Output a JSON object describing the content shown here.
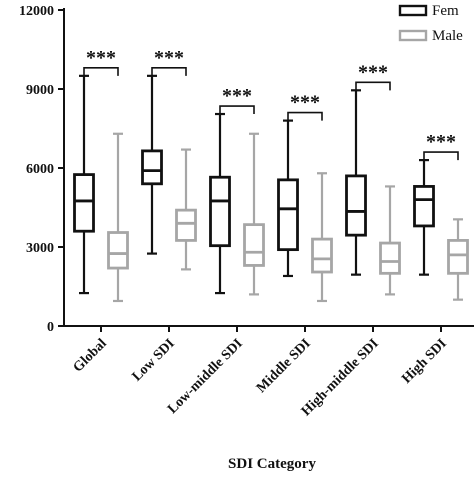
{
  "chart_data": {
    "type": "boxplot",
    "title": "",
    "xlabel": "SDI Category",
    "ylabel": "",
    "ylim": [
      0,
      12000
    ],
    "yticks": [
      0,
      3000,
      6000,
      9000,
      12000
    ],
    "categories": [
      "Global",
      "Low SDI",
      "Low-middle SDI",
      "Middle SDI",
      "High-middle SDI",
      "High SDI"
    ],
    "legend_position": "top-right",
    "series": [
      {
        "name": "Fem",
        "color": "#111111",
        "boxes": [
          {
            "min": 1250,
            "q1": 3600,
            "median": 4750,
            "q3": 5750,
            "max": 9500
          },
          {
            "min": 2750,
            "q1": 5400,
            "median": 5900,
            "q3": 6650,
            "max": 9500
          },
          {
            "min": 1250,
            "q1": 3050,
            "median": 4750,
            "q3": 5650,
            "max": 8050
          },
          {
            "min": 1900,
            "q1": 2900,
            "median": 4450,
            "q3": 5550,
            "max": 7800
          },
          {
            "min": 1950,
            "q1": 3450,
            "median": 4350,
            "q3": 5700,
            "max": 8950
          },
          {
            "min": 1950,
            "q1": 3800,
            "median": 4800,
            "q3": 5300,
            "max": 6300
          }
        ]
      },
      {
        "name": "Male",
        "color": "#a6a6a6",
        "boxes": [
          {
            "min": 950,
            "q1": 2200,
            "median": 2750,
            "q3": 3550,
            "max": 7300
          },
          {
            "min": 2150,
            "q1": 3250,
            "median": 3900,
            "q3": 4400,
            "max": 6700
          },
          {
            "min": 1200,
            "q1": 2300,
            "median": 2800,
            "q3": 3850,
            "max": 7300
          },
          {
            "min": 950,
            "q1": 2050,
            "median": 2550,
            "q3": 3300,
            "max": 5800
          },
          {
            "min": 1200,
            "q1": 2000,
            "median": 2450,
            "q3": 3150,
            "max": 5300
          },
          {
            "min": 1000,
            "q1": 2000,
            "median": 2700,
            "q3": 3250,
            "max": 4050
          }
        ]
      }
    ],
    "significance": [
      "***",
      "***",
      "***",
      "***",
      "***",
      "***"
    ]
  }
}
